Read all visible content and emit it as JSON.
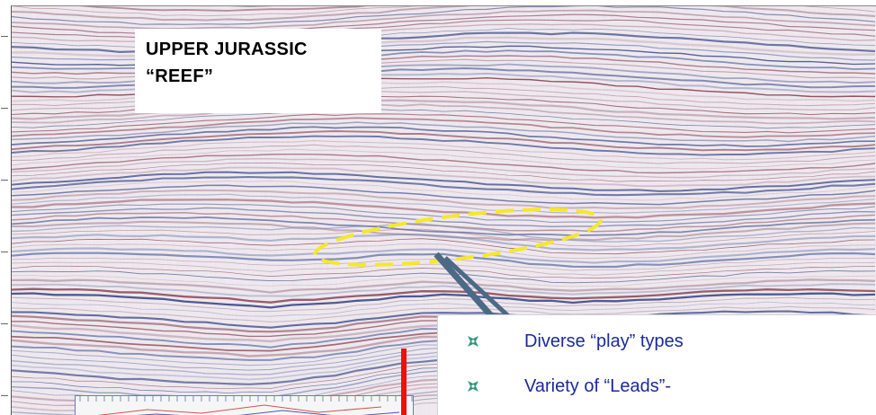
{
  "annotation": {
    "title_lines": [
      "UPPER JURASSIC",
      "“REEF”"
    ]
  },
  "bullets": [
    {
      "text": "Diverse “play” types",
      "icon": "star-bullet-icon"
    },
    {
      "text": "Variety of “Leads”-",
      "icon": "star-bullet-icon"
    }
  ],
  "colors": {
    "highlight_outline": "#f5e82a",
    "pointer": "#4c6985",
    "bullet_text": "#1b2a9a",
    "marker": "#ee1010"
  }
}
